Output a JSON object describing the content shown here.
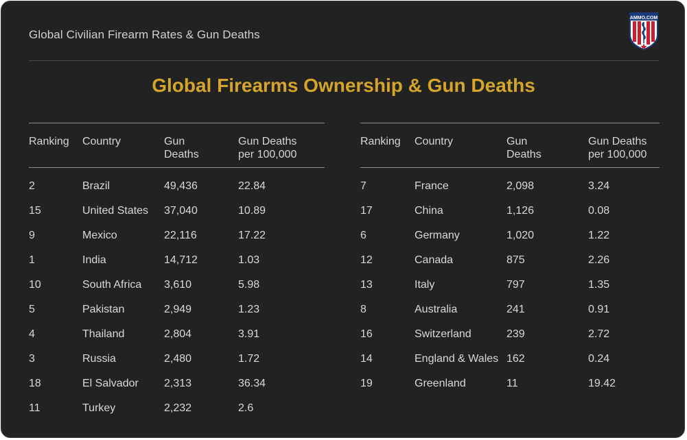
{
  "header": {
    "title": "Global Civilian Firearm Rates & Gun Deaths",
    "logo_text": "AMMO.COM"
  },
  "colors": {
    "background": "#222222",
    "accent": "#d4a52a",
    "text": "#d9d9d9"
  },
  "chart_data": {
    "type": "table",
    "title": "Global Firearms Ownership & Gun Deaths",
    "columns": [
      "Ranking",
      "Country",
      "Gun Deaths",
      "Gun Deaths per 100,000"
    ],
    "tables": [
      {
        "columns": [
          {
            "line1": "Ranking",
            "line2": ""
          },
          {
            "line1": "Country",
            "line2": ""
          },
          {
            "line1": "Gun",
            "line2": "Deaths"
          },
          {
            "line1": "Gun Deaths",
            "line2": "per 100,000"
          }
        ],
        "rows": [
          {
            "ranking": "2",
            "country": "Brazil",
            "gun_deaths": "49,436",
            "per_100k": "22.84"
          },
          {
            "ranking": "15",
            "country": "United States",
            "gun_deaths": "37,040",
            "per_100k": "10.89"
          },
          {
            "ranking": "9",
            "country": "Mexico",
            "gun_deaths": "22,116",
            "per_100k": "17.22"
          },
          {
            "ranking": "1",
            "country": "India",
            "gun_deaths": "14,712",
            "per_100k": "1.03"
          },
          {
            "ranking": "10",
            "country": "South Africa",
            "gun_deaths": "3,610",
            "per_100k": "5.98"
          },
          {
            "ranking": "5",
            "country": "Pakistan",
            "gun_deaths": "2,949",
            "per_100k": "1.23"
          },
          {
            "ranking": "4",
            "country": "Thailand",
            "gun_deaths": "2,804",
            "per_100k": "3.91"
          },
          {
            "ranking": "3",
            "country": "Russia",
            "gun_deaths": "2,480",
            "per_100k": "1.72"
          },
          {
            "ranking": "18",
            "country": "El Salvador",
            "gun_deaths": "2,313",
            "per_100k": "36.34"
          },
          {
            "ranking": "11",
            "country": "Turkey",
            "gun_deaths": "2,232",
            "per_100k": "2.6"
          }
        ]
      },
      {
        "columns": [
          {
            "line1": "Ranking",
            "line2": ""
          },
          {
            "line1": "Country",
            "line2": ""
          },
          {
            "line1": "Gun",
            "line2": "Deaths"
          },
          {
            "line1": "Gun Deaths",
            "line2": "per 100,000"
          }
        ],
        "rows": [
          {
            "ranking": "7",
            "country": "France",
            "gun_deaths": "2,098",
            "per_100k": "3.24"
          },
          {
            "ranking": "17",
            "country": "China",
            "gun_deaths": "1,126",
            "per_100k": "0.08"
          },
          {
            "ranking": "6",
            "country": "Germany",
            "gun_deaths": "1,020",
            "per_100k": "1.22"
          },
          {
            "ranking": "12",
            "country": "Canada",
            "gun_deaths": "875",
            "per_100k": "2.26"
          },
          {
            "ranking": "13",
            "country": "Italy",
            "gun_deaths": "797",
            "per_100k": "1.35"
          },
          {
            "ranking": "8",
            "country": "Australia",
            "gun_deaths": "241",
            "per_100k": "0.91"
          },
          {
            "ranking": "16",
            "country": "Switzerland",
            "gun_deaths": "239",
            "per_100k": "2.72"
          },
          {
            "ranking": "14",
            "country": "England & Wales",
            "gun_deaths": "162",
            "per_100k": "0.24"
          },
          {
            "ranking": "19",
            "country": "Greenland",
            "gun_deaths": "11",
            "per_100k": "19.42"
          }
        ]
      }
    ]
  }
}
